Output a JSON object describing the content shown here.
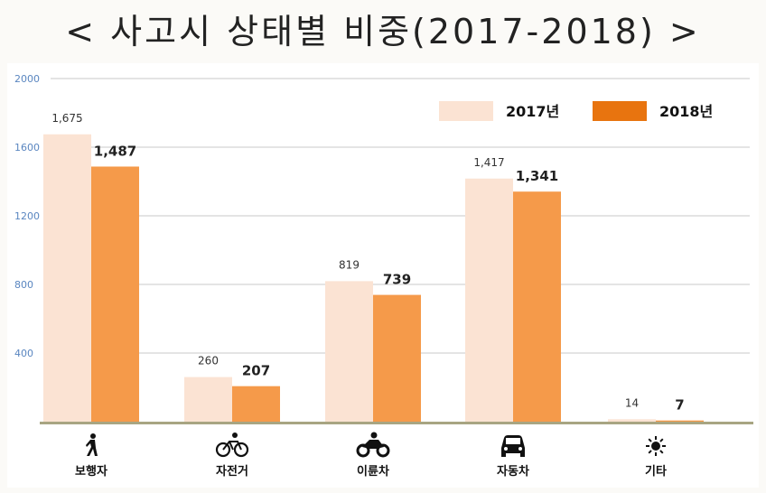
{
  "page_title": "< 사고시 상태별 비중(2017-2018) >",
  "chart_data": {
    "type": "bar",
    "title": "< 사고시 상태별 비중(2017-2018) >",
    "categories": [
      "보행자",
      "자전거",
      "이륜차",
      "자동차",
      "기타"
    ],
    "category_icons": [
      "pedestrian-icon",
      "bicycle-icon",
      "motorcycle-icon",
      "car-icon",
      "sun-icon"
    ],
    "series": [
      {
        "name": "2017년",
        "values": [
          1675,
          260,
          819,
          1417,
          14
        ],
        "labels": [
          "1,675",
          "260",
          "819",
          "1,417",
          "14"
        ],
        "color": "#fbe3d3"
      },
      {
        "name": "2018년",
        "values": [
          1487,
          207,
          739,
          1341,
          7
        ],
        "labels": [
          "1,487",
          "207",
          "739",
          "1,341",
          "7"
        ],
        "color": "#f59a4a"
      }
    ],
    "legend_colors": [
      "#fbe3d3",
      "#e8740f"
    ],
    "ylim": [
      0,
      2000
    ],
    "yticks": [
      400,
      800,
      1200,
      1600,
      2000
    ],
    "ytick_labels": [
      "400",
      "800",
      "1200",
      "1600",
      "2000"
    ],
    "xlabel": "",
    "ylabel": "",
    "grid": true,
    "legend_position": "top-right"
  }
}
